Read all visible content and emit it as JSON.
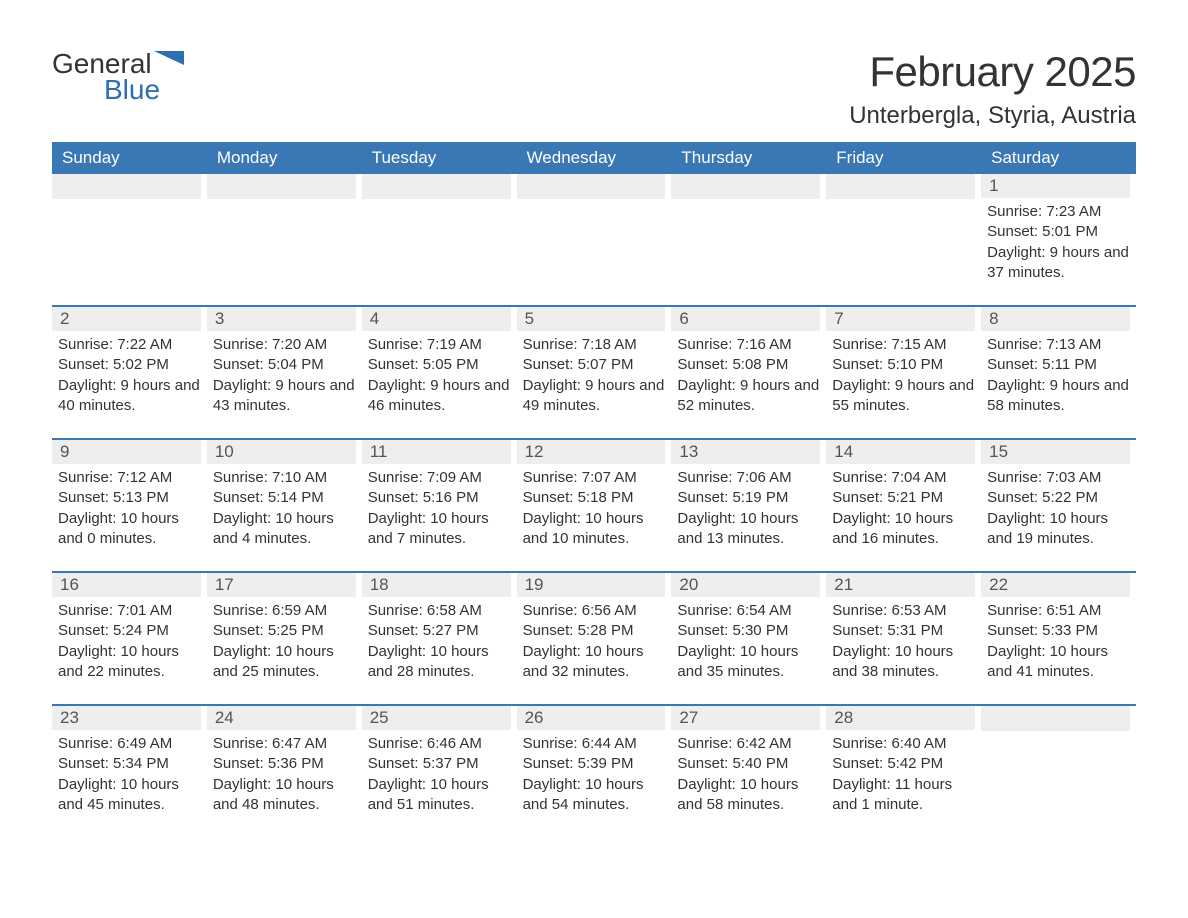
{
  "logo": {
    "general": "General",
    "blue": "Blue"
  },
  "title": "February 2025",
  "location": "Unterbergla, Styria, Austria",
  "brand_color": "#3a77b5",
  "header_bg": "#3a77b5",
  "header_text_color": "#ffffff",
  "daynum_bg": "#eeeeee",
  "text_color": "#333333",
  "background_color": "#ffffff",
  "day_names": [
    "Sunday",
    "Monday",
    "Tuesday",
    "Wednesday",
    "Thursday",
    "Friday",
    "Saturday"
  ],
  "weeks": [
    [
      {
        "n": "",
        "sunrise": "",
        "sunset": "",
        "daylight": ""
      },
      {
        "n": "",
        "sunrise": "",
        "sunset": "",
        "daylight": ""
      },
      {
        "n": "",
        "sunrise": "",
        "sunset": "",
        "daylight": ""
      },
      {
        "n": "",
        "sunrise": "",
        "sunset": "",
        "daylight": ""
      },
      {
        "n": "",
        "sunrise": "",
        "sunset": "",
        "daylight": ""
      },
      {
        "n": "",
        "sunrise": "",
        "sunset": "",
        "daylight": ""
      },
      {
        "n": "1",
        "sunrise": "Sunrise: 7:23 AM",
        "sunset": "Sunset: 5:01 PM",
        "daylight": "Daylight: 9 hours and 37 minutes."
      }
    ],
    [
      {
        "n": "2",
        "sunrise": "Sunrise: 7:22 AM",
        "sunset": "Sunset: 5:02 PM",
        "daylight": "Daylight: 9 hours and 40 minutes."
      },
      {
        "n": "3",
        "sunrise": "Sunrise: 7:20 AM",
        "sunset": "Sunset: 5:04 PM",
        "daylight": "Daylight: 9 hours and 43 minutes."
      },
      {
        "n": "4",
        "sunrise": "Sunrise: 7:19 AM",
        "sunset": "Sunset: 5:05 PM",
        "daylight": "Daylight: 9 hours and 46 minutes."
      },
      {
        "n": "5",
        "sunrise": "Sunrise: 7:18 AM",
        "sunset": "Sunset: 5:07 PM",
        "daylight": "Daylight: 9 hours and 49 minutes."
      },
      {
        "n": "6",
        "sunrise": "Sunrise: 7:16 AM",
        "sunset": "Sunset: 5:08 PM",
        "daylight": "Daylight: 9 hours and 52 minutes."
      },
      {
        "n": "7",
        "sunrise": "Sunrise: 7:15 AM",
        "sunset": "Sunset: 5:10 PM",
        "daylight": "Daylight: 9 hours and 55 minutes."
      },
      {
        "n": "8",
        "sunrise": "Sunrise: 7:13 AM",
        "sunset": "Sunset: 5:11 PM",
        "daylight": "Daylight: 9 hours and 58 minutes."
      }
    ],
    [
      {
        "n": "9",
        "sunrise": "Sunrise: 7:12 AM",
        "sunset": "Sunset: 5:13 PM",
        "daylight": "Daylight: 10 hours and 0 minutes."
      },
      {
        "n": "10",
        "sunrise": "Sunrise: 7:10 AM",
        "sunset": "Sunset: 5:14 PM",
        "daylight": "Daylight: 10 hours and 4 minutes."
      },
      {
        "n": "11",
        "sunrise": "Sunrise: 7:09 AM",
        "sunset": "Sunset: 5:16 PM",
        "daylight": "Daylight: 10 hours and 7 minutes."
      },
      {
        "n": "12",
        "sunrise": "Sunrise: 7:07 AM",
        "sunset": "Sunset: 5:18 PM",
        "daylight": "Daylight: 10 hours and 10 minutes."
      },
      {
        "n": "13",
        "sunrise": "Sunrise: 7:06 AM",
        "sunset": "Sunset: 5:19 PM",
        "daylight": "Daylight: 10 hours and 13 minutes."
      },
      {
        "n": "14",
        "sunrise": "Sunrise: 7:04 AM",
        "sunset": "Sunset: 5:21 PM",
        "daylight": "Daylight: 10 hours and 16 minutes."
      },
      {
        "n": "15",
        "sunrise": "Sunrise: 7:03 AM",
        "sunset": "Sunset: 5:22 PM",
        "daylight": "Daylight: 10 hours and 19 minutes."
      }
    ],
    [
      {
        "n": "16",
        "sunrise": "Sunrise: 7:01 AM",
        "sunset": "Sunset: 5:24 PM",
        "daylight": "Daylight: 10 hours and 22 minutes."
      },
      {
        "n": "17",
        "sunrise": "Sunrise: 6:59 AM",
        "sunset": "Sunset: 5:25 PM",
        "daylight": "Daylight: 10 hours and 25 minutes."
      },
      {
        "n": "18",
        "sunrise": "Sunrise: 6:58 AM",
        "sunset": "Sunset: 5:27 PM",
        "daylight": "Daylight: 10 hours and 28 minutes."
      },
      {
        "n": "19",
        "sunrise": "Sunrise: 6:56 AM",
        "sunset": "Sunset: 5:28 PM",
        "daylight": "Daylight: 10 hours and 32 minutes."
      },
      {
        "n": "20",
        "sunrise": "Sunrise: 6:54 AM",
        "sunset": "Sunset: 5:30 PM",
        "daylight": "Daylight: 10 hours and 35 minutes."
      },
      {
        "n": "21",
        "sunrise": "Sunrise: 6:53 AM",
        "sunset": "Sunset: 5:31 PM",
        "daylight": "Daylight: 10 hours and 38 minutes."
      },
      {
        "n": "22",
        "sunrise": "Sunrise: 6:51 AM",
        "sunset": "Sunset: 5:33 PM",
        "daylight": "Daylight: 10 hours and 41 minutes."
      }
    ],
    [
      {
        "n": "23",
        "sunrise": "Sunrise: 6:49 AM",
        "sunset": "Sunset: 5:34 PM",
        "daylight": "Daylight: 10 hours and 45 minutes."
      },
      {
        "n": "24",
        "sunrise": "Sunrise: 6:47 AM",
        "sunset": "Sunset: 5:36 PM",
        "daylight": "Daylight: 10 hours and 48 minutes."
      },
      {
        "n": "25",
        "sunrise": "Sunrise: 6:46 AM",
        "sunset": "Sunset: 5:37 PM",
        "daylight": "Daylight: 10 hours and 51 minutes."
      },
      {
        "n": "26",
        "sunrise": "Sunrise: 6:44 AM",
        "sunset": "Sunset: 5:39 PM",
        "daylight": "Daylight: 10 hours and 54 minutes."
      },
      {
        "n": "27",
        "sunrise": "Sunrise: 6:42 AM",
        "sunset": "Sunset: 5:40 PM",
        "daylight": "Daylight: 10 hours and 58 minutes."
      },
      {
        "n": "28",
        "sunrise": "Sunrise: 6:40 AM",
        "sunset": "Sunset: 5:42 PM",
        "daylight": "Daylight: 11 hours and 1 minute."
      },
      {
        "n": "",
        "sunrise": "",
        "sunset": "",
        "daylight": ""
      }
    ]
  ]
}
